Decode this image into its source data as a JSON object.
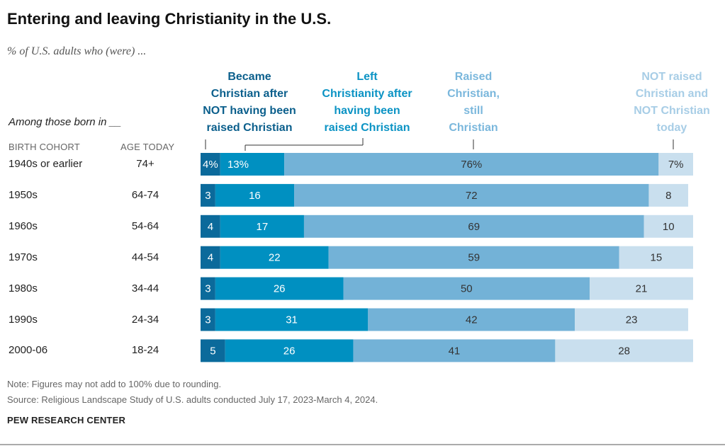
{
  "title": "Entering and leaving Christianity in the U.S.",
  "subtitle": "% of U.S. adults who (were) ...",
  "among": "Among those born in __",
  "col_headers": {
    "cohort": "BIRTH COHORT",
    "age": "AGE TODAY"
  },
  "note": "Note: Figures may not add to 100% due to rounding.",
  "source": "Source: Religious Landscape Study of U.S. adults conducted July 17, 2023-March 4, 2024.",
  "brand": "PEW RESEARCH CENTER",
  "chart_data": {
    "type": "bar",
    "orientation": "horizontal-stacked",
    "categories": [
      "1940s or earlier",
      "1950s",
      "1960s",
      "1970s",
      "1980s",
      "1990s",
      "2000-06"
    ],
    "ages": [
      "74+",
      "64-74",
      "54-64",
      "44-54",
      "34-44",
      "24-34",
      "18-24"
    ],
    "series": [
      {
        "name": "Became Christian after NOT having been raised Christian",
        "color": "#0b6a9b",
        "label_color": "#0b5f8c",
        "values": [
          4,
          3,
          4,
          4,
          3,
          3,
          5
        ]
      },
      {
        "name": "Left Christianity after having been raised Christian",
        "color": "#0090c1",
        "label_color": "#0b93c4",
        "values": [
          13,
          16,
          17,
          22,
          26,
          31,
          26
        ]
      },
      {
        "name": "Raised Christian, still Christian",
        "color": "#73b2d7",
        "label_color": "#7ab7dc",
        "values": [
          76,
          72,
          69,
          59,
          50,
          42,
          41
        ]
      },
      {
        "name": "NOT raised Christian and NOT Christian today",
        "color": "#c9dfee",
        "label_color": "#a7cde6",
        "values": [
          7,
          8,
          10,
          15,
          21,
          23,
          28
        ]
      }
    ],
    "legend_lines": [
      [
        "Became",
        "Christian after",
        "NOT having been",
        "raised Christian"
      ],
      [
        "Left",
        "Christianity after",
        "having been",
        "raised Christian"
      ],
      [
        "Raised",
        "Christian,",
        "still",
        "Christian"
      ],
      [
        "NOT raised",
        "Christian and",
        "NOT Christian",
        "today"
      ]
    ],
    "first_row_suffix": "%",
    "xlim": [
      0,
      100
    ],
    "grid": false,
    "legend": "top"
  }
}
